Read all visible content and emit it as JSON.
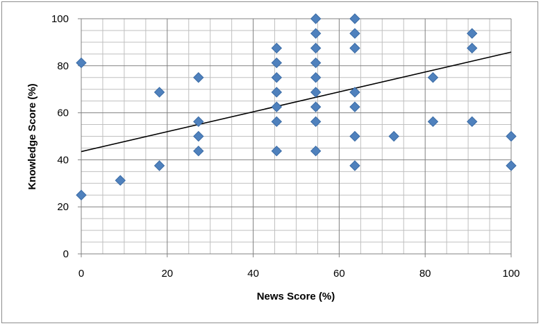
{
  "chart_data": {
    "type": "scatter",
    "title": "",
    "xlabel": "News Score (%)",
    "ylabel": "Knowledge Score (%)",
    "xlim": [
      0,
      100
    ],
    "ylim": [
      0,
      100
    ],
    "x_ticks": [
      0,
      20,
      40,
      60,
      80,
      100
    ],
    "y_ticks": [
      0,
      20,
      40,
      60,
      80,
      100
    ],
    "x_minor_step": 5,
    "y_minor_step": 5,
    "grid": true,
    "legend": "none",
    "marker": "diamond",
    "colors": {
      "marker": "#4f81bd",
      "marker_edge": "#3a6ba5",
      "trendline": "#000000",
      "grid_major": "#808080",
      "grid_minor": "#bfbfbf"
    },
    "trendline": {
      "type": "linear",
      "x": [
        0,
        100
      ],
      "y": [
        43.5,
        85.8
      ]
    },
    "points": [
      {
        "x": 0,
        "y": 81.25
      },
      {
        "x": 0,
        "y": 25
      },
      {
        "x": 9.09,
        "y": 31.25
      },
      {
        "x": 18.18,
        "y": 68.75
      },
      {
        "x": 18.18,
        "y": 37.5
      },
      {
        "x": 27.27,
        "y": 75
      },
      {
        "x": 27.27,
        "y": 56.25
      },
      {
        "x": 27.27,
        "y": 50
      },
      {
        "x": 27.27,
        "y": 43.75
      },
      {
        "x": 45.45,
        "y": 87.5
      },
      {
        "x": 45.45,
        "y": 81.25
      },
      {
        "x": 45.45,
        "y": 75
      },
      {
        "x": 45.45,
        "y": 68.75
      },
      {
        "x": 45.45,
        "y": 62.5
      },
      {
        "x": 45.45,
        "y": 56.25
      },
      {
        "x": 45.45,
        "y": 43.75
      },
      {
        "x": 54.55,
        "y": 100
      },
      {
        "x": 54.55,
        "y": 93.75
      },
      {
        "x": 54.55,
        "y": 87.5
      },
      {
        "x": 54.55,
        "y": 81.25
      },
      {
        "x": 54.55,
        "y": 75
      },
      {
        "x": 54.55,
        "y": 68.75
      },
      {
        "x": 54.55,
        "y": 62.5
      },
      {
        "x": 54.55,
        "y": 56.25
      },
      {
        "x": 54.55,
        "y": 43.75
      },
      {
        "x": 63.64,
        "y": 100
      },
      {
        "x": 63.64,
        "y": 93.75
      },
      {
        "x": 63.64,
        "y": 87.5
      },
      {
        "x": 63.64,
        "y": 68.75
      },
      {
        "x": 63.64,
        "y": 62.5
      },
      {
        "x": 63.64,
        "y": 50
      },
      {
        "x": 63.64,
        "y": 37.5
      },
      {
        "x": 72.73,
        "y": 50
      },
      {
        "x": 81.82,
        "y": 75
      },
      {
        "x": 81.82,
        "y": 56.25
      },
      {
        "x": 90.91,
        "y": 93.75
      },
      {
        "x": 90.91,
        "y": 87.5
      },
      {
        "x": 90.91,
        "y": 56.25
      },
      {
        "x": 100,
        "y": 50
      },
      {
        "x": 100,
        "y": 37.5
      }
    ]
  }
}
